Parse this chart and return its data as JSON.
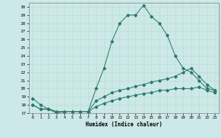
{
  "title": "",
  "xlabel": "Humidex (Indice chaleur)",
  "bg_color": "#cce8e8",
  "line_color": "#2a7a6a",
  "grid_color": "#bbddcc",
  "xlim": [
    -0.5,
    23.5
  ],
  "ylim": [
    17,
    30.5
  ],
  "yticks": [
    17,
    18,
    19,
    20,
    21,
    22,
    23,
    24,
    25,
    26,
    27,
    28,
    29,
    30
  ],
  "xticks": [
    0,
    1,
    2,
    3,
    4,
    5,
    6,
    7,
    8,
    9,
    10,
    11,
    12,
    13,
    14,
    15,
    16,
    17,
    18,
    19,
    20,
    21,
    22,
    23
  ],
  "xtick_labels": [
    "0",
    "1",
    "2",
    "3",
    "4",
    "5",
    "6",
    "7",
    "8",
    "9",
    "10",
    "11",
    "12",
    "13",
    "14",
    "15",
    "16",
    "17",
    "18",
    "19",
    "20",
    "21",
    "22",
    "23"
  ],
  "ytick_labels": [
    "17",
    "18",
    "19",
    "20",
    "21",
    "22",
    "23",
    "24",
    "25",
    "26",
    "27",
    "28",
    "29",
    "30"
  ],
  "series": [
    {
      "x": [
        0,
        1,
        2,
        3,
        4,
        5,
        6,
        7,
        8,
        9,
        10,
        11,
        12,
        13,
        14,
        15,
        16,
        17,
        18,
        19,
        20,
        21,
        22,
        23
      ],
      "y": [
        18.8,
        18.0,
        17.5,
        17.0,
        17.2,
        17.2,
        17.2,
        17.2,
        20.0,
        22.5,
        25.8,
        28.0,
        29.0,
        29.0,
        30.2,
        28.8,
        28.0,
        26.5,
        24.0,
        22.5,
        22.0,
        21.0,
        20.0,
        19.8
      ]
    },
    {
      "x": [
        0,
        1,
        2,
        3,
        4,
        5,
        6,
        7,
        8,
        9,
        10,
        11,
        12,
        13,
        14,
        15,
        16,
        17,
        18,
        19,
        20,
        21,
        22,
        23
      ],
      "y": [
        18.0,
        17.5,
        17.5,
        17.2,
        17.2,
        17.2,
        17.2,
        17.2,
        18.5,
        19.0,
        19.5,
        19.8,
        20.0,
        20.3,
        20.5,
        20.8,
        21.0,
        21.2,
        21.5,
        22.0,
        22.5,
        21.5,
        20.5,
        19.8
      ]
    },
    {
      "x": [
        0,
        1,
        2,
        3,
        4,
        5,
        6,
        7,
        8,
        9,
        10,
        11,
        12,
        13,
        14,
        15,
        16,
        17,
        18,
        19,
        20,
        21,
        22,
        23
      ],
      "y": [
        18.0,
        17.5,
        17.5,
        17.2,
        17.2,
        17.2,
        17.2,
        17.2,
        17.8,
        18.2,
        18.5,
        18.8,
        19.0,
        19.2,
        19.4,
        19.5,
        19.8,
        19.8,
        20.0,
        20.0,
        20.0,
        20.2,
        19.8,
        19.5
      ]
    }
  ]
}
